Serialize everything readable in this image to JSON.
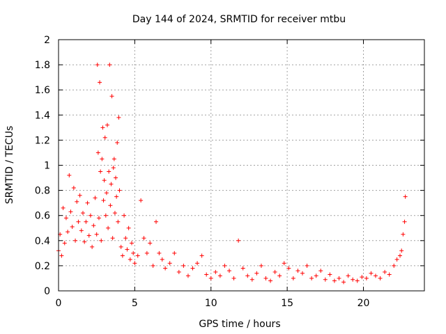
{
  "chart_data": {
    "type": "scatter",
    "title": "Day 144 of 2024, SRMTID for receiver mtbu",
    "xlabel": "GPS time / hours",
    "ylabel": "SRMTID / TECUs",
    "xlim": [
      0,
      24
    ],
    "ylim": [
      0,
      2
    ],
    "xticks": [
      0,
      5,
      10,
      15,
      20
    ],
    "yticks": [
      0,
      0.2,
      0.4,
      0.6,
      0.8,
      1,
      1.2,
      1.4,
      1.6,
      1.8,
      2
    ],
    "xtick_labels": [
      "0",
      "5",
      "10",
      "15",
      "20"
    ],
    "ytick_labels": [
      "0",
      "0.2",
      "0.4",
      "0.6",
      "0.8",
      "1",
      "1.2",
      "1.4",
      "1.6",
      "1.8",
      "2"
    ],
    "grid": true,
    "marker": "+",
    "series": [
      {
        "name": "mtbu",
        "color": "#ff0000",
        "x": [
          0.0,
          0.1,
          0.2,
          0.3,
          0.4,
          0.5,
          0.6,
          0.7,
          0.8,
          0.9,
          1.0,
          1.1,
          1.2,
          1.3,
          1.4,
          1.5,
          1.6,
          1.7,
          1.8,
          1.9,
          2.0,
          2.1,
          2.2,
          2.3,
          2.4,
          2.5,
          2.55,
          2.6,
          2.65,
          2.7,
          2.75,
          2.8,
          2.85,
          2.9,
          2.95,
          3.0,
          3.05,
          3.1,
          3.15,
          3.2,
          3.25,
          3.3,
          3.35,
          3.4,
          3.45,
          3.5,
          3.55,
          3.6,
          3.65,
          3.7,
          3.75,
          3.8,
          3.85,
          3.9,
          3.95,
          4.0,
          4.1,
          4.2,
          4.3,
          4.4,
          4.5,
          4.6,
          4.7,
          4.8,
          4.9,
          5.0,
          5.2,
          5.4,
          5.6,
          5.8,
          6.0,
          6.2,
          6.4,
          6.6,
          6.8,
          7.0,
          7.3,
          7.6,
          7.9,
          8.2,
          8.5,
          8.8,
          9.1,
          9.4,
          9.7,
          10.0,
          10.3,
          10.6,
          10.9,
          11.2,
          11.5,
          11.8,
          12.1,
          12.4,
          12.7,
          13.0,
          13.3,
          13.6,
          13.9,
          14.2,
          14.5,
          14.8,
          15.1,
          15.4,
          15.7,
          16.0,
          16.3,
          16.6,
          16.9,
          17.2,
          17.5,
          17.8,
          18.1,
          18.4,
          18.7,
          19.0,
          19.3,
          19.6,
          19.9,
          20.2,
          20.5,
          20.8,
          21.1,
          21.4,
          21.7,
          22.0,
          22.2,
          22.4,
          22.5,
          22.6,
          22.7,
          22.75
        ],
        "y": [
          0.32,
          0.45,
          0.28,
          0.66,
          0.38,
          0.58,
          0.47,
          0.92,
          0.63,
          0.51,
          0.82,
          0.4,
          0.71,
          0.55,
          0.76,
          0.48,
          0.62,
          0.39,
          0.55,
          0.7,
          0.44,
          0.6,
          0.35,
          0.52,
          0.74,
          0.45,
          1.8,
          1.1,
          0.58,
          1.66,
          0.95,
          0.4,
          1.05,
          1.3,
          0.72,
          0.88,
          1.22,
          0.6,
          0.78,
          1.32,
          0.5,
          0.95,
          1.8,
          0.68,
          0.85,
          1.55,
          0.42,
          0.98,
          1.05,
          0.62,
          0.9,
          0.75,
          1.18,
          0.55,
          1.38,
          0.8,
          0.35,
          0.28,
          0.6,
          0.42,
          0.33,
          0.5,
          0.25,
          0.38,
          0.3,
          0.22,
          0.28,
          0.72,
          0.42,
          0.3,
          0.38,
          0.2,
          0.55,
          0.3,
          0.25,
          0.18,
          0.22,
          0.3,
          0.15,
          0.2,
          0.12,
          0.18,
          0.22,
          0.28,
          0.13,
          0.1,
          0.15,
          0.12,
          0.2,
          0.16,
          0.1,
          0.4,
          0.18,
          0.12,
          0.09,
          0.14,
          0.2,
          0.1,
          0.08,
          0.15,
          0.12,
          0.22,
          0.18,
          0.1,
          0.16,
          0.14,
          0.2,
          0.1,
          0.12,
          0.16,
          0.09,
          0.13,
          0.08,
          0.1,
          0.07,
          0.12,
          0.09,
          0.08,
          0.11,
          0.1,
          0.14,
          0.12,
          0.1,
          0.15,
          0.13,
          0.2,
          0.25,
          0.28,
          0.32,
          0.45,
          0.55,
          0.75
        ]
      }
    ]
  }
}
